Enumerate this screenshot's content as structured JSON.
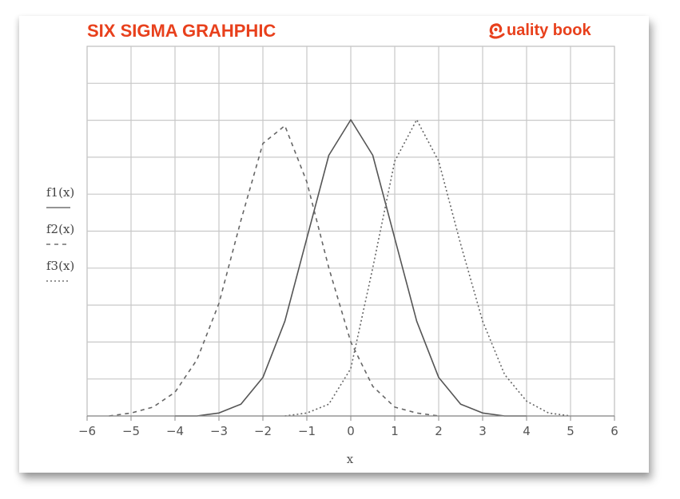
{
  "header": {
    "title": "SIX SIGMA GRAHPHIC",
    "brand_text": "uality book",
    "brand_icon": "q-logo-icon",
    "brand_color": "#e8401c"
  },
  "chart_data": {
    "type": "line",
    "xlabel": "x",
    "ylabel": "",
    "xlim": [
      -6,
      6
    ],
    "ylim": [
      0,
      1
    ],
    "x_ticks": [
      "-6",
      "-5",
      "-4",
      "-3",
      "-2",
      "-1",
      "0",
      "1",
      "2",
      "3",
      "4",
      "5",
      "6"
    ],
    "grid": true,
    "legend": "left",
    "series": [
      {
        "name": "f1(x)",
        "style": "solid",
        "x": [
          -4,
          -3.5,
          -3,
          -2.5,
          -2,
          -1.5,
          -1,
          -0.5,
          0,
          0.5,
          1,
          1.5,
          2,
          2.5,
          3,
          3.5,
          4
        ],
        "y": [
          0.0,
          0.0,
          0.01,
          0.04,
          0.13,
          0.32,
          0.6,
          0.88,
          1.0,
          0.88,
          0.6,
          0.32,
          0.13,
          0.04,
          0.01,
          0.0,
          0.0
        ]
      },
      {
        "name": "f2(x)",
        "style": "dashed",
        "x": [
          -5.5,
          -5,
          -4.5,
          -4,
          -3.5,
          -3,
          -2.5,
          -2,
          -1.5,
          -1,
          -0.5,
          0,
          0.5,
          1,
          1.5,
          2
        ],
        "y": [
          0.0,
          0.01,
          0.03,
          0.08,
          0.19,
          0.38,
          0.66,
          0.92,
          0.98,
          0.79,
          0.5,
          0.25,
          0.1,
          0.03,
          0.01,
          0.0
        ]
      },
      {
        "name": "f3(x)",
        "style": "dotted",
        "x": [
          -1.5,
          -1,
          -0.5,
          0,
          0.5,
          1,
          1.5,
          2,
          2.5,
          3,
          3.5,
          4,
          4.5,
          5
        ],
        "y": [
          0.0,
          0.01,
          0.04,
          0.16,
          0.5,
          0.86,
          1.0,
          0.86,
          0.58,
          0.32,
          0.14,
          0.05,
          0.01,
          0.0
        ]
      }
    ]
  }
}
